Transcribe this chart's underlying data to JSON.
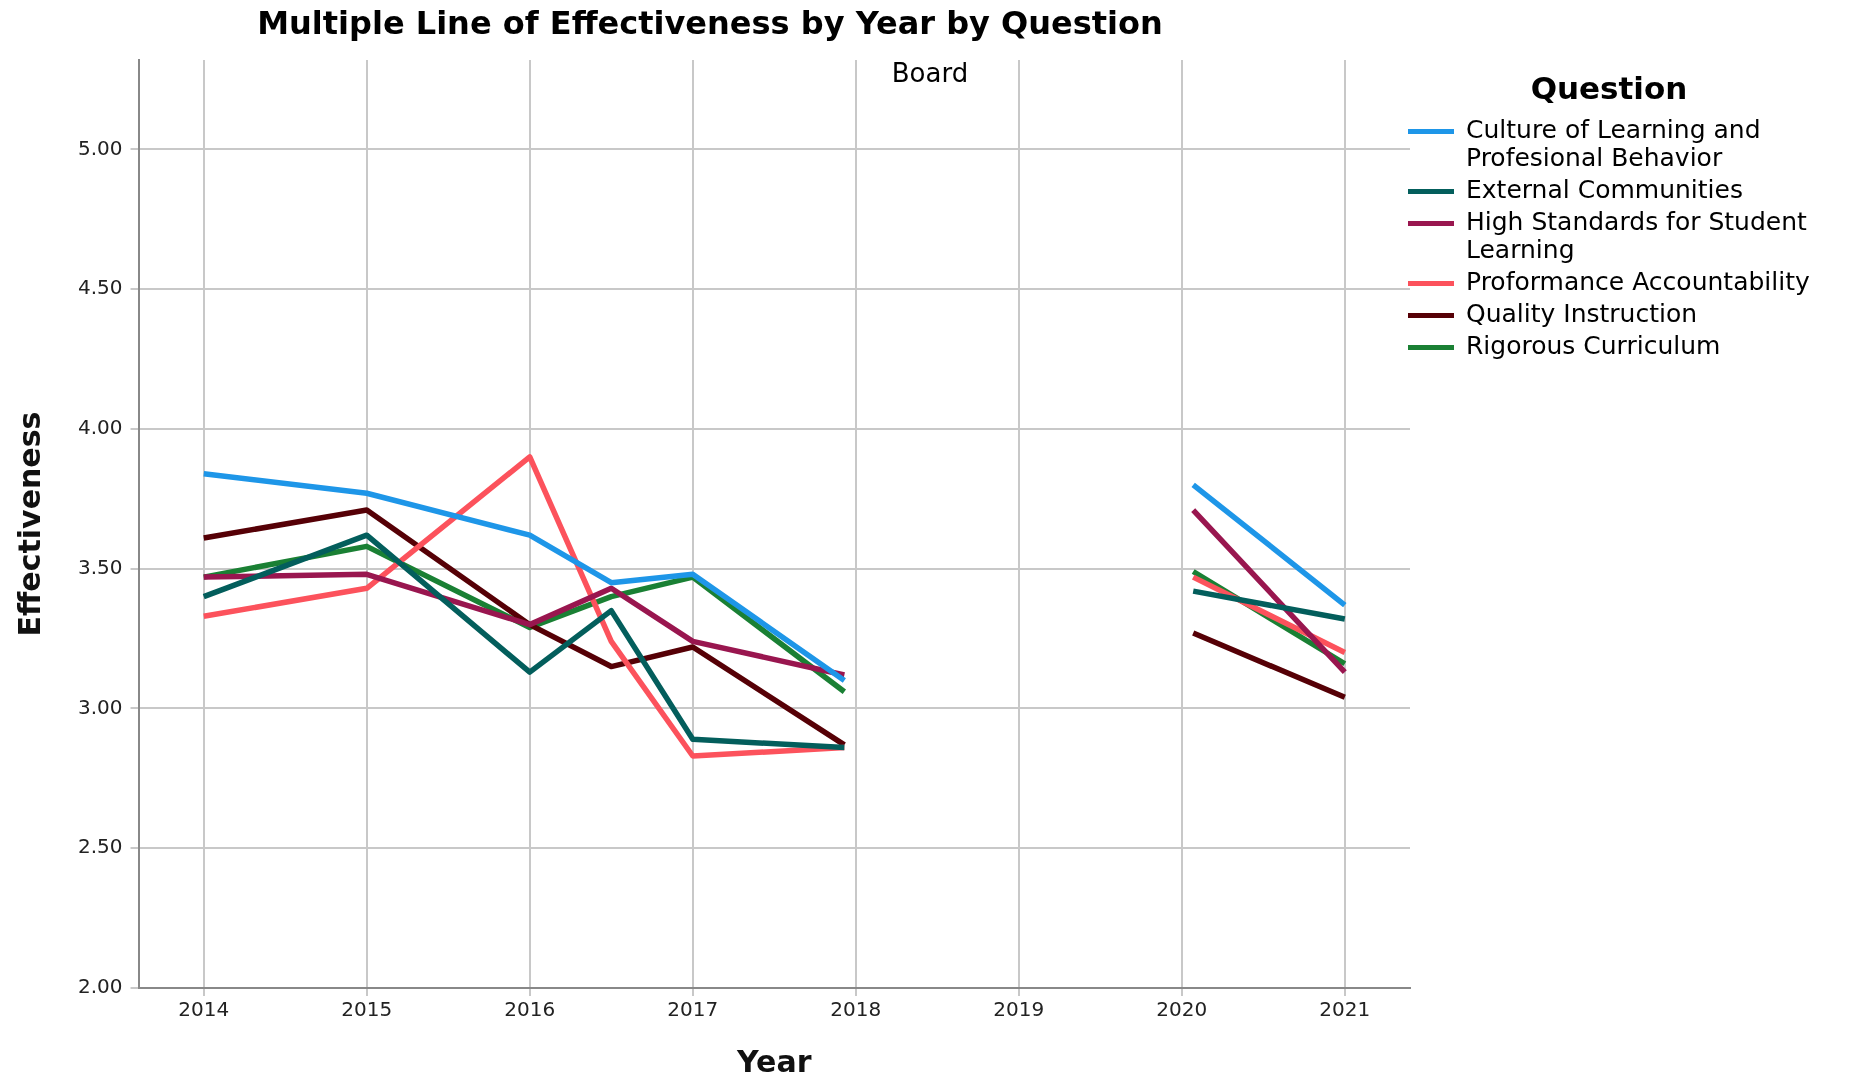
{
  "chart_data": {
    "type": "line",
    "title": "Multiple Line of Effectiveness by Year by Question",
    "subtitle": "Board",
    "xlabel": "Year",
    "ylabel": "Effectiveness",
    "legend_title": "Question",
    "x": [
      2014,
      2015,
      2016,
      2016.5,
      2017,
      2017.93,
      2019,
      2020.07,
      2021
    ],
    "series": [
      {
        "name": "Culture of Learning and Profesional Behavior",
        "color": "#1e96e8",
        "values": [
          3.84,
          3.77,
          3.62,
          3.45,
          3.48,
          3.1,
          null,
          3.8,
          3.37
        ]
      },
      {
        "name": "External Communities",
        "color": "#035e5c",
        "values": [
          3.4,
          3.62,
          3.13,
          3.35,
          2.89,
          2.86,
          null,
          3.42,
          3.32
        ]
      },
      {
        "name": "High Standards for Student Learning",
        "color": "#99164f",
        "values": [
          3.47,
          3.48,
          3.3,
          3.43,
          3.24,
          3.12,
          null,
          3.71,
          3.13
        ]
      },
      {
        "name": "Proformance Accountability",
        "color": "#fc525c",
        "values": [
          3.33,
          3.43,
          3.9,
          3.24,
          2.83,
          2.86,
          null,
          3.47,
          3.2
        ]
      },
      {
        "name": "Quality Instruction",
        "color": "#560006",
        "values": [
          3.61,
          3.71,
          3.3,
          3.15,
          3.22,
          2.87,
          null,
          3.27,
          3.04
        ]
      },
      {
        "name": "Rigorous Curriculum",
        "color": "#1a8034",
        "values": [
          3.47,
          3.58,
          3.29,
          3.4,
          3.47,
          3.06,
          null,
          3.49,
          3.16
        ]
      }
    ],
    "xlim": [
      2013.6,
      2021.4
    ],
    "xticks": [
      2014,
      2015,
      2016,
      2017,
      2018,
      2019,
      2020,
      2021
    ],
    "ylim": [
      2,
      5.32
    ],
    "yticks": [
      {
        "value": 2,
        "label": "2.00"
      },
      {
        "value": 2.5,
        "label": "2.50"
      },
      {
        "value": 3,
        "label": "3.00"
      },
      {
        "value": 3.5,
        "label": "3.50"
      },
      {
        "value": 4,
        "label": "4.00"
      },
      {
        "value": 4.5,
        "label": "4.50"
      },
      {
        "value": 5,
        "label": "5.00"
      }
    ],
    "grid": true,
    "legend": "top right",
    "marker": "none",
    "line_style": "solid"
  }
}
